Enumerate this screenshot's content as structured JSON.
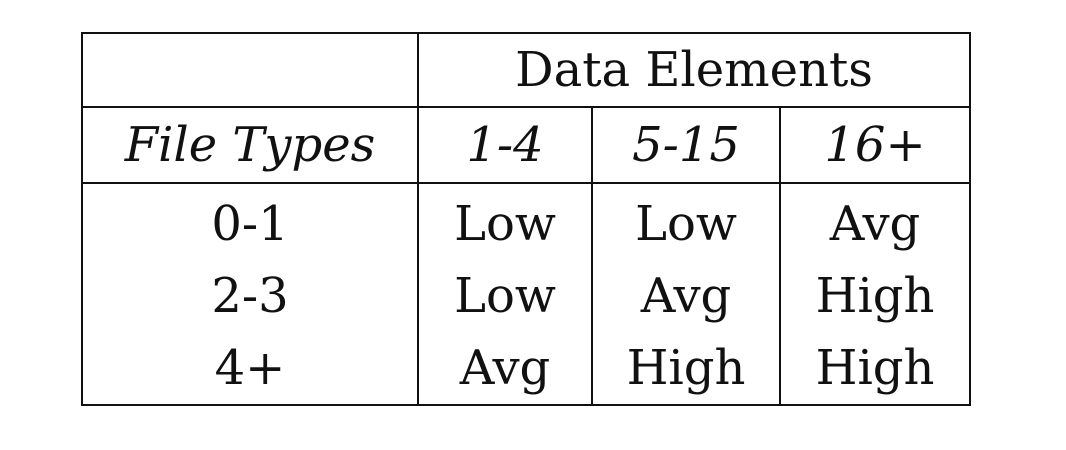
{
  "table": {
    "group_header": "Data Elements",
    "row_header_label": "File Types",
    "columns": [
      "1-4",
      "5-15",
      "16+"
    ],
    "rows": [
      {
        "label": "0-1",
        "values": [
          "Low",
          "Low",
          "Avg"
        ]
      },
      {
        "label": "2-3",
        "values": [
          "Low",
          "Avg",
          "High"
        ]
      },
      {
        "label": "4+",
        "values": [
          "Avg",
          "High",
          "High"
        ]
      }
    ]
  }
}
